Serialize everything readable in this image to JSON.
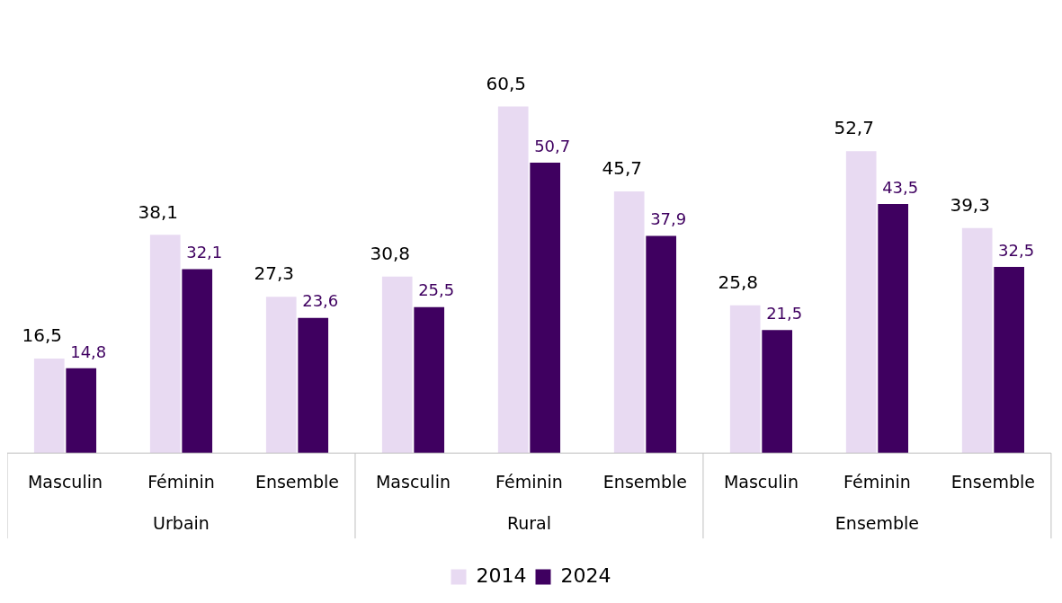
{
  "chart_data": {
    "type": "bar",
    "categories": [
      "Masculin",
      "Féminin",
      "Ensemble",
      "Masculin",
      "Féminin",
      "Ensemble",
      "Masculin",
      "Féminin",
      "Ensemble"
    ],
    "series": [
      {
        "name": "2014",
        "color": "#e8daf2",
        "values": [
          16.5,
          38.1,
          27.3,
          30.8,
          60.5,
          45.7,
          25.8,
          52.7,
          39.3
        ],
        "value_labels": [
          "16,5",
          "38,1",
          "27,3",
          "30,8",
          "60,5",
          "45,7",
          "25,8",
          "52,7",
          "39,3"
        ]
      },
      {
        "name": "2024",
        "color": "#3f0060",
        "values": [
          14.8,
          32.1,
          23.6,
          25.5,
          50.7,
          37.9,
          21.5,
          43.5,
          32.5
        ],
        "value_labels": [
          "14,8",
          "32,1",
          "23,6",
          "25,5",
          "50,7",
          "37,9",
          "21,5",
          "43,5",
          "32,5"
        ]
      }
    ],
    "annotations": [
      "Urbain",
      "Rural",
      "Ensemble"
    ],
    "legend": "bottom",
    "grid": false
  }
}
